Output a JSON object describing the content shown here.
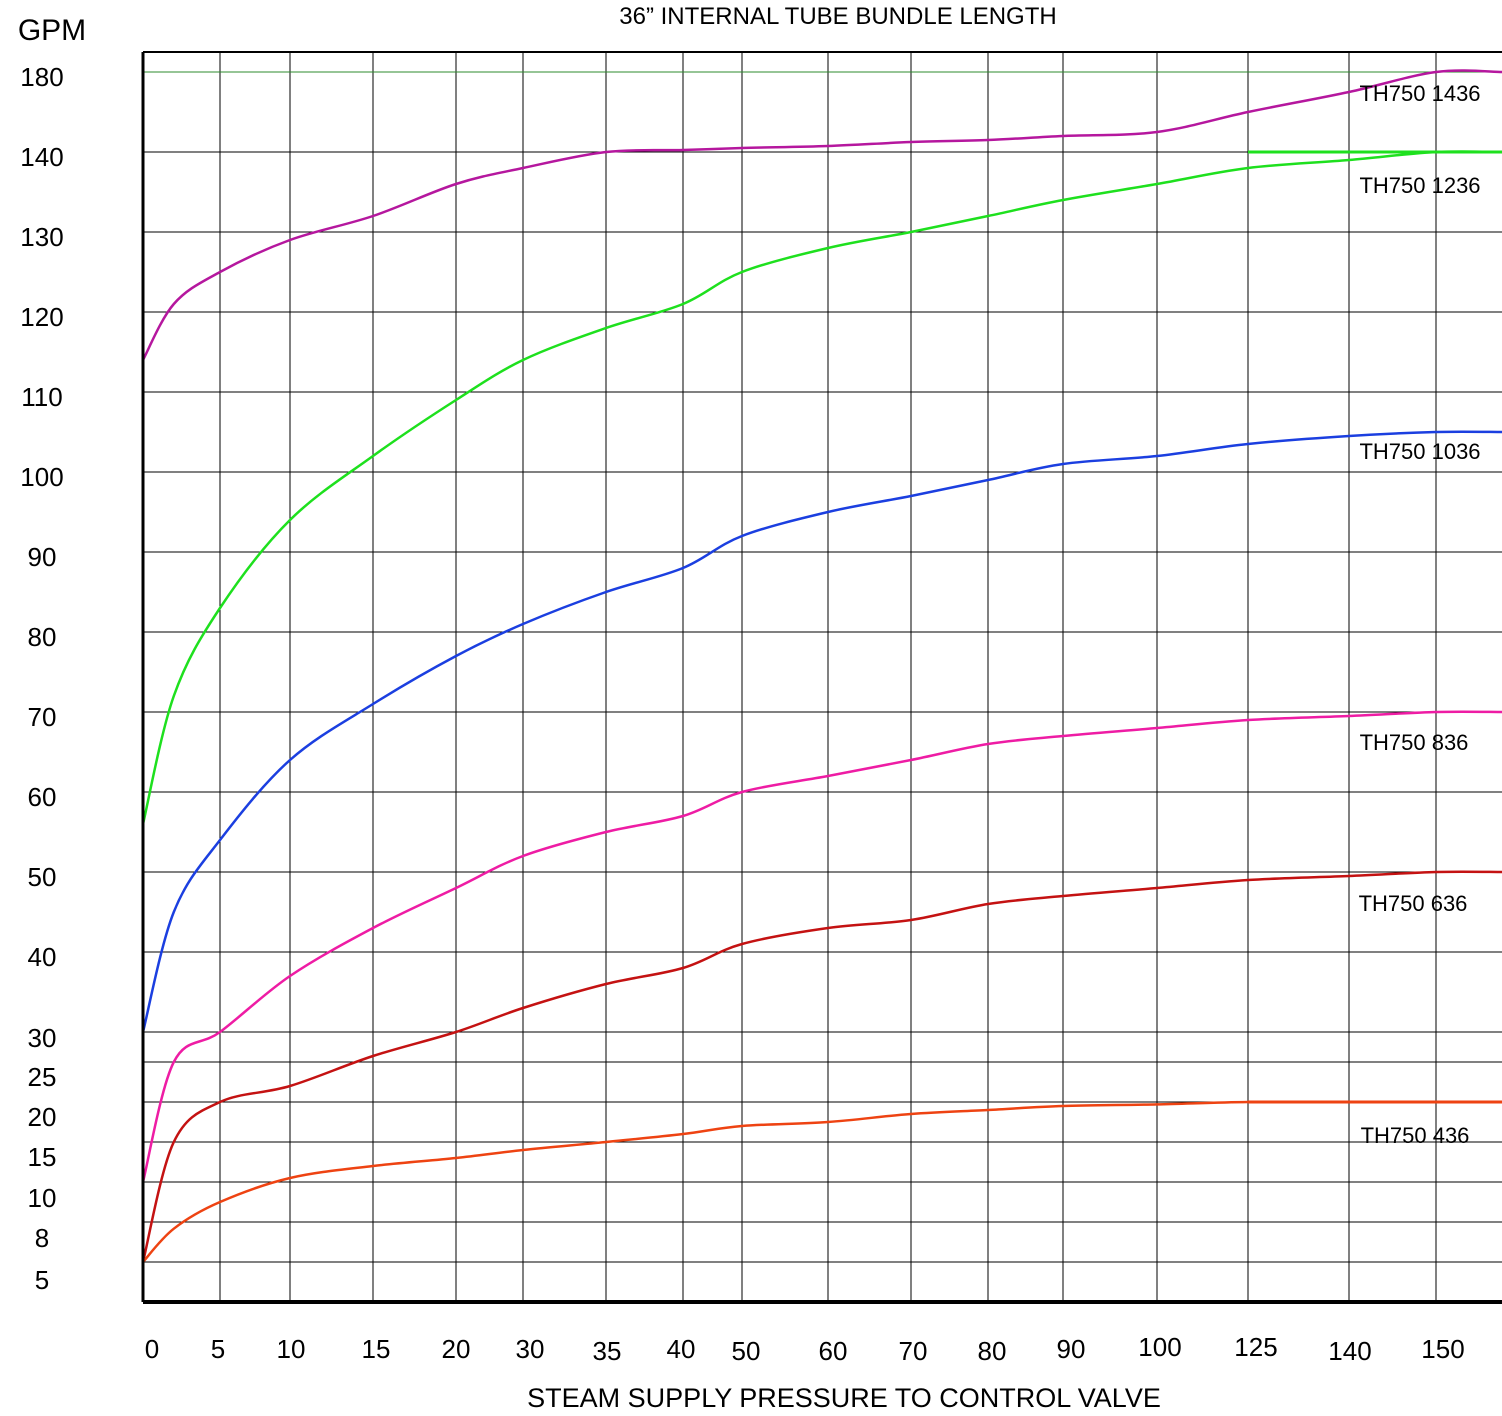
{
  "chart_data": {
    "type": "line",
    "title": "36” INTERNAL TUBE BUNDLE  LENGTH",
    "xlabel": "STEAM SUPPLY PRESSURE TO CONTROL VALVE",
    "ylabel": "GPM",
    "x_ticks": [
      "0",
      "5",
      "10",
      "15",
      "20",
      "30",
      "35",
      "40",
      "50",
      "60",
      "70",
      "80",
      "90",
      "100",
      "125",
      "140",
      "150"
    ],
    "y_ticks": [
      "5",
      "8",
      "10",
      "15",
      "20",
      "25",
      "30",
      "40",
      "50",
      "60",
      "70",
      "80",
      "90",
      "100",
      "110",
      "120",
      "130",
      "140",
      "180"
    ],
    "grid": true,
    "series": [
      {
        "name": "TH750 1436",
        "color": "#b5179e",
        "x": [
          0,
          2,
          5,
          10,
          15,
          20,
          30,
          35,
          40,
          50,
          60,
          70,
          80,
          90,
          100,
          125,
          140,
          150,
          160
        ],
        "y": [
          "114",
          "121",
          "125",
          "129",
          "132",
          "136",
          "138",
          "140",
          "141",
          "142",
          "143",
          "145",
          "146",
          "148",
          "150",
          "160",
          "170",
          "180",
          "180"
        ]
      },
      {
        "name": "TH750 1236",
        "color": "#1ee01e",
        "x": [
          0,
          2,
          5,
          10,
          15,
          20,
          30,
          35,
          40,
          50,
          60,
          70,
          80,
          90,
          100,
          125,
          140,
          150,
          160
        ],
        "y": [
          "56",
          "72",
          "83",
          "94",
          "102",
          "109",
          "114",
          "118",
          "121",
          "125",
          "128",
          "130",
          "132",
          "134",
          "136",
          "138",
          "139",
          "140",
          "140"
        ]
      },
      {
        "name": "TH750 1036",
        "color": "#1b3fe0",
        "x": [
          0,
          2,
          5,
          10,
          15,
          20,
          30,
          35,
          40,
          50,
          60,
          70,
          80,
          90,
          100,
          125,
          140,
          150,
          160
        ],
        "y": [
          "30",
          "45",
          "54",
          "64",
          "71",
          "77",
          "81",
          "85",
          "88",
          "92",
          "95",
          "97",
          "99",
          "101",
          "102",
          "103.5",
          "104.5",
          "105",
          "105"
        ]
      },
      {
        "name": "TH750 836",
        "color": "#ee1ca4",
        "x": [
          0,
          2,
          5,
          10,
          15,
          20,
          30,
          35,
          40,
          50,
          60,
          70,
          80,
          90,
          100,
          125,
          140,
          150,
          160
        ],
        "y": [
          "10",
          "25",
          "30",
          "37",
          "43",
          "48",
          "52",
          "55",
          "57",
          "60",
          "62",
          "64",
          "66",
          "67",
          "68",
          "69",
          "69.5",
          "70",
          "70"
        ]
      },
      {
        "name": "TH750 636",
        "color": "#c41212",
        "x": [
          0,
          2,
          5,
          10,
          15,
          20,
          30,
          35,
          40,
          50,
          60,
          70,
          80,
          90,
          100,
          125,
          140,
          150,
          160
        ],
        "y": [
          "5",
          "15",
          "20",
          "22",
          "26",
          "30",
          "33",
          "36",
          "38",
          "41",
          "43",
          "44",
          "46",
          "47",
          "48",
          "49",
          "49.5",
          "50",
          "50"
        ]
      },
      {
        "name": "TH750 436",
        "color": "#ee4312",
        "x": [
          0,
          2,
          5,
          10,
          15,
          20,
          30,
          35,
          40,
          50,
          60,
          70,
          80,
          90,
          100,
          125,
          140,
          150,
          160
        ],
        "y": [
          "5",
          "7.5",
          "9",
          "10.5",
          "12",
          "13",
          "14",
          "15",
          "16",
          "17",
          "17.5",
          "18.5",
          "19",
          "19.5",
          "19.7",
          "20",
          "20",
          "20",
          "20"
        ]
      }
    ]
  }
}
